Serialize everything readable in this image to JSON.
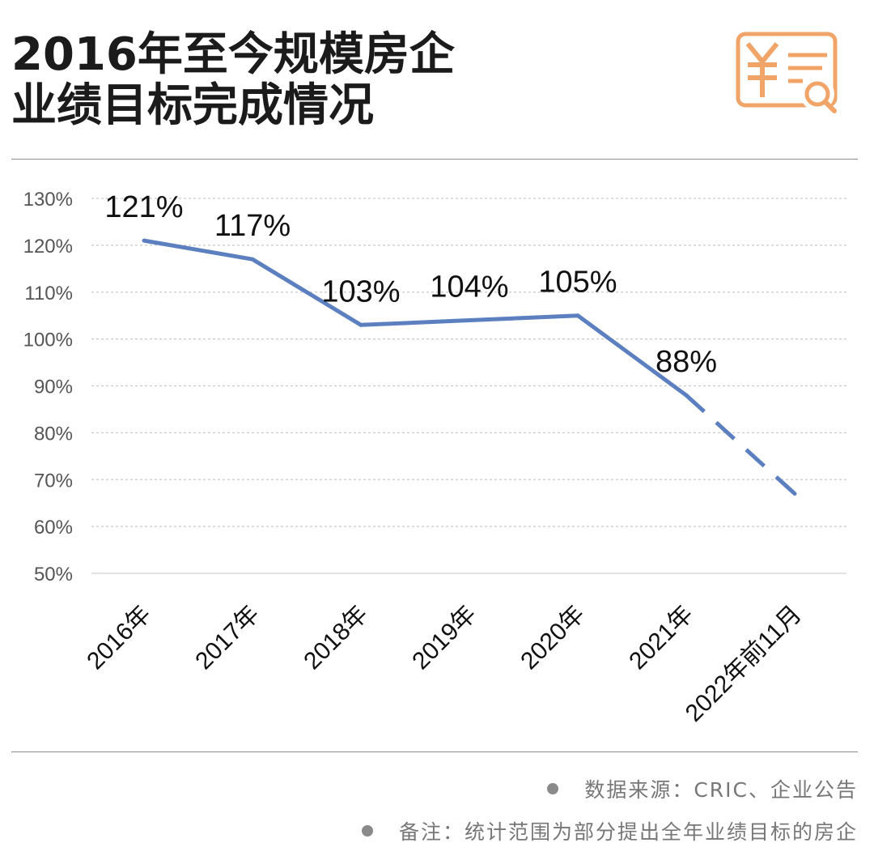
{
  "header": {
    "icon": {
      "name": "receipt-yuan-search-icon",
      "color": "#F1A468"
    }
  },
  "chart_data": {
    "type": "line",
    "title_lines": [
      "2016年至今规模房企",
      "业绩目标完成情况"
    ],
    "categories": [
      "2016年",
      "2017年",
      "2018年",
      "2019年",
      "2020年",
      "2021年",
      "2022年前11月"
    ],
    "series": [
      {
        "values": [
          121,
          117,
          103,
          104,
          105,
          88,
          67
        ],
        "color": "#5B7FBF",
        "dashed_from_index": 5
      }
    ],
    "data_labels": [
      "121%",
      "117%",
      "103%",
      "104%",
      "105%",
      "88%",
      null
    ],
    "ylim": [
      50,
      130
    ],
    "y_ticks": [
      130,
      120,
      110,
      100,
      90,
      80,
      70,
      60,
      50
    ],
    "y_tick_labels": [
      "130%",
      "120%",
      "110%",
      "100%",
      "90%",
      "80%",
      "70%",
      "60%",
      "50%"
    ],
    "grid": true
  },
  "footer": {
    "notes": [
      "数据来源：CRIC、企业公告",
      "备注：统计范围为部分提出全年业绩目标的房企"
    ],
    "bullet_color": "#8A8A8A"
  }
}
